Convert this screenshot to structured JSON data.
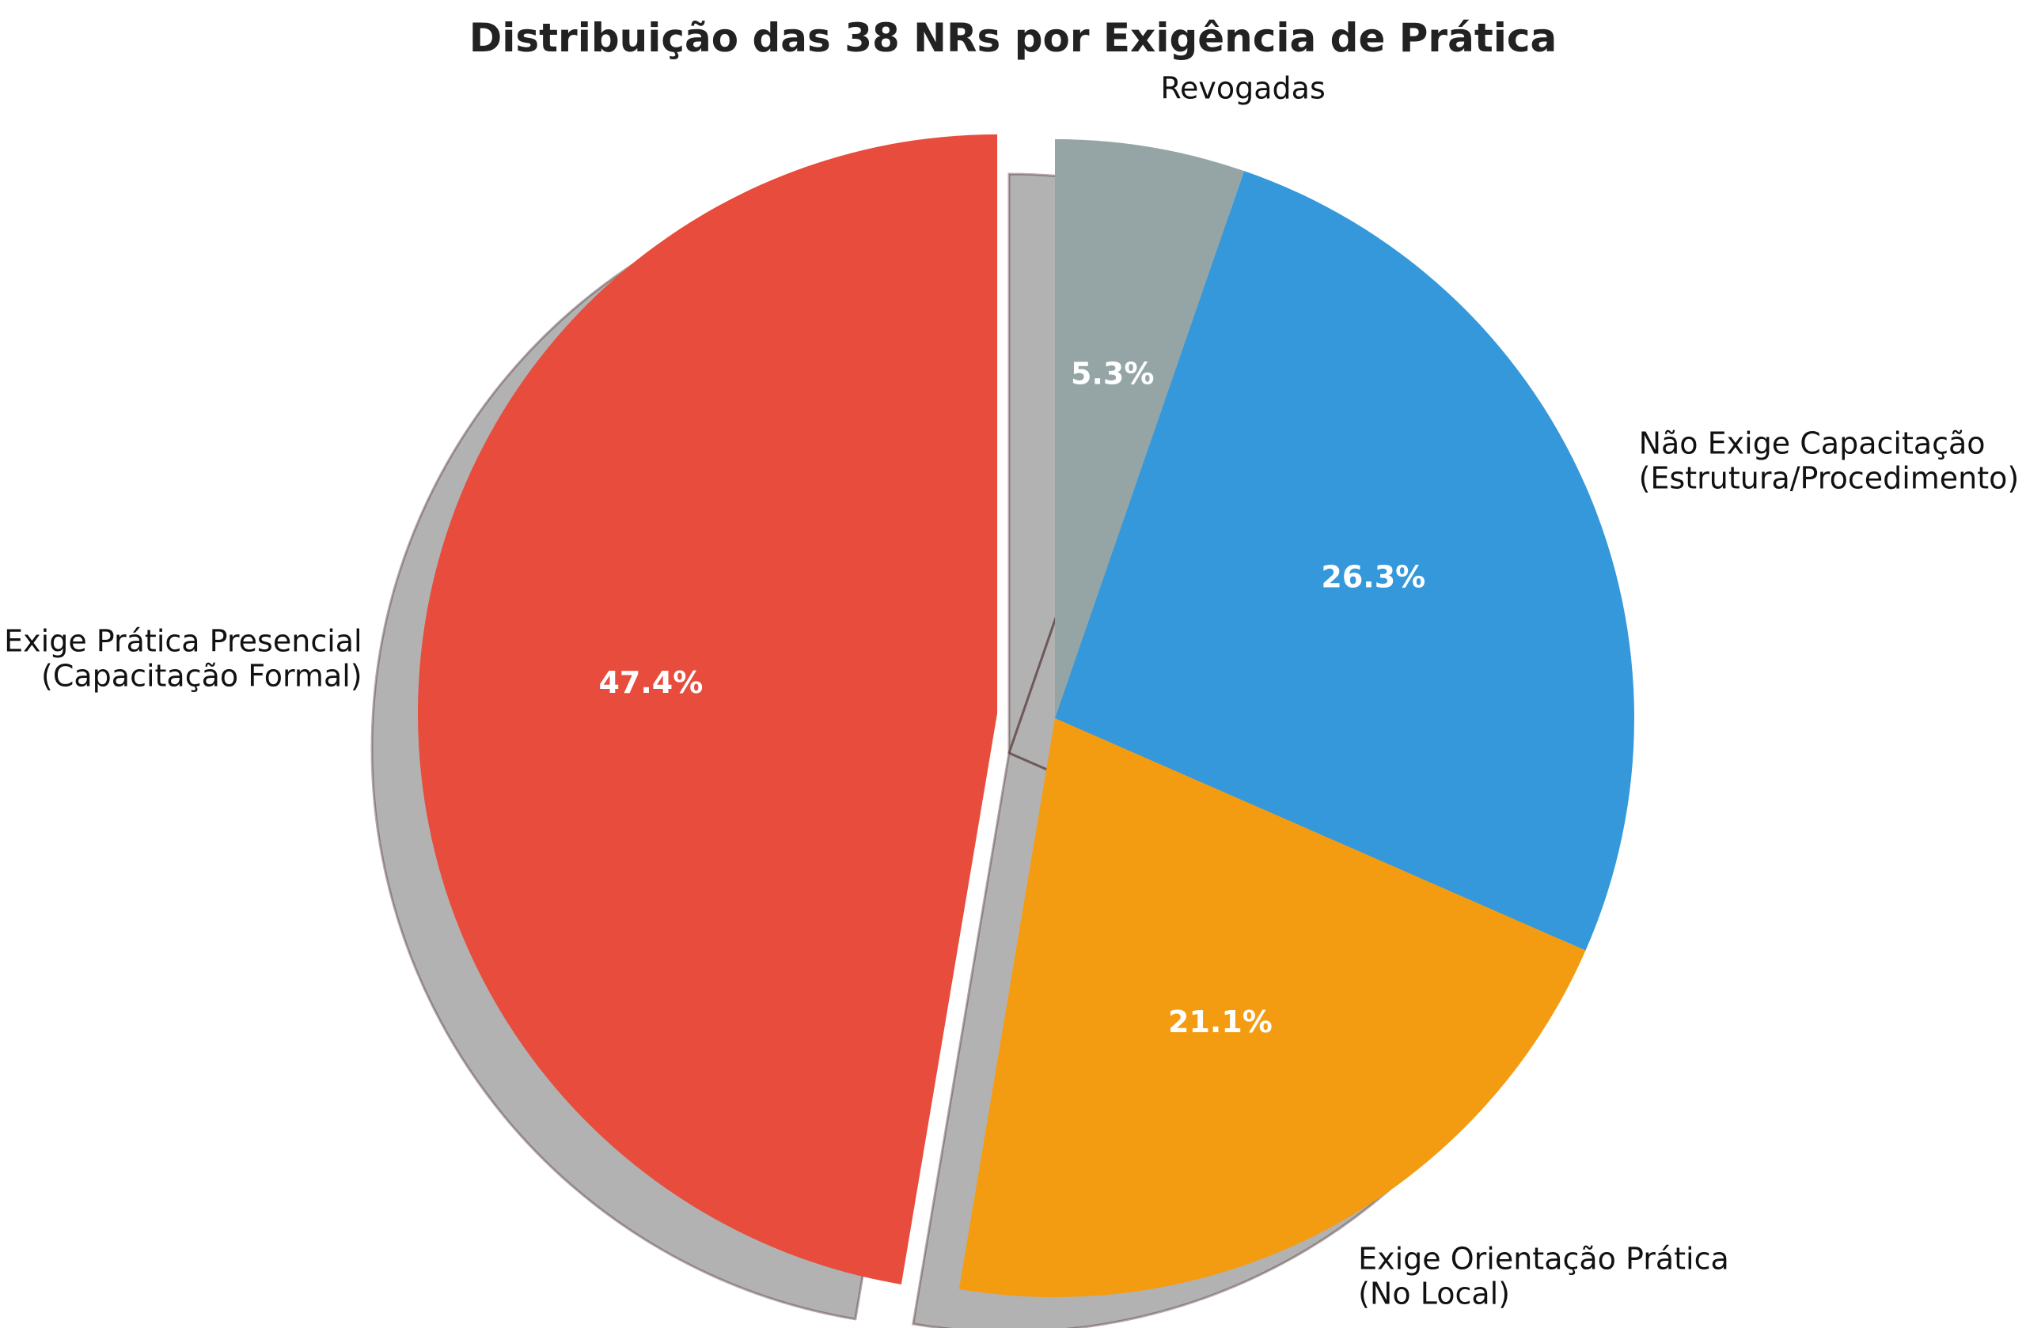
{
  "chart_data": {
    "type": "pie",
    "title": "Distribuição das 38 NRs por Exigência de Prática",
    "slices": [
      {
        "label": [
          "Exige Prática Presencial",
          "(Capacitação Formal)"
        ],
        "value": 47.4,
        "pct_label": "47.4%",
        "color": "#e74c3c",
        "exploded": true
      },
      {
        "label": [
          "Exige Orientação Prática",
          "(No Local)"
        ],
        "value": 21.1,
        "pct_label": "21.1%",
        "color": "#f39c12",
        "exploded": false
      },
      {
        "label": [
          "Não Exige Capacitação",
          "(Estrutura/Procedimento)"
        ],
        "value": 26.3,
        "pct_label": "26.3%",
        "color": "#3498db",
        "exploded": false
      },
      {
        "label": [
          "Revogadas"
        ],
        "value": 5.3,
        "pct_label": "5.3%",
        "color": "#95a5a6",
        "exploded": false
      }
    ],
    "start_angle_deg": 90,
    "direction": "counterclockwise",
    "shadow": true
  }
}
